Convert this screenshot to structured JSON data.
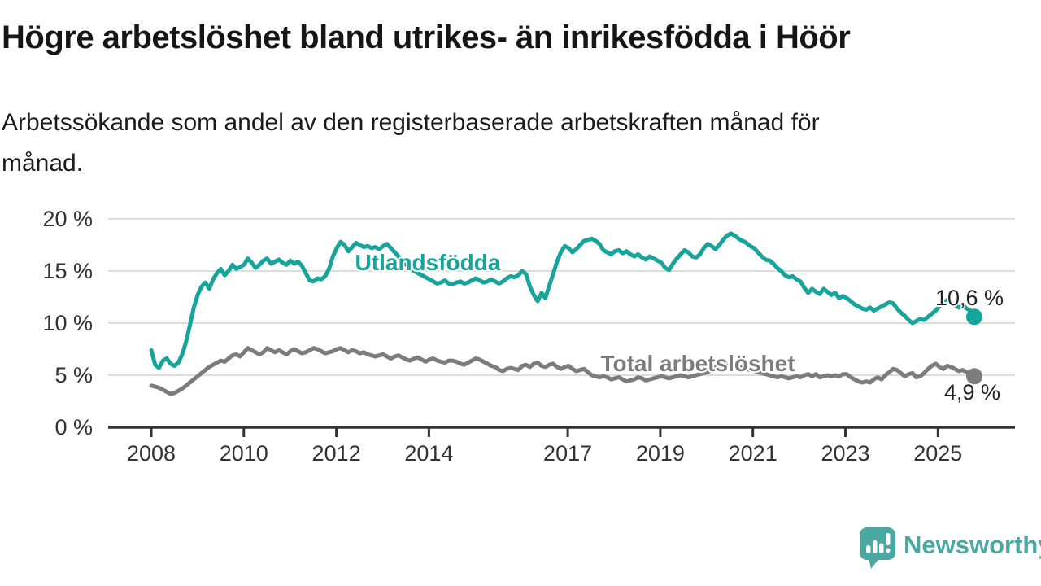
{
  "chart_data": {
    "type": "line",
    "title": "Högre arbetslöshet bland utrikes- än inrikesfödda i Höör",
    "subtitle": "Arbetssökande som andel av den registerbaserade arbetskraften månad för\nmånad.",
    "x_unit": "month",
    "x_start": "2008-01",
    "x_end": "2025-10",
    "x_tick_years": [
      2008,
      2010,
      2012,
      2014,
      2017,
      2019,
      2021,
      2023,
      2025
    ],
    "y_ticks": [
      {
        "value": 20,
        "label": "20 %"
      },
      {
        "value": 15,
        "label": "15 %"
      },
      {
        "value": 10,
        "label": "10 %"
      },
      {
        "value": 5,
        "label": "5 %"
      },
      {
        "value": 0,
        "label": "0 %"
      }
    ],
    "ylim": [
      0,
      20
    ],
    "unit": "%",
    "grid": "horizontal-only",
    "legend": "inline-labels-on-lines",
    "series": [
      {
        "name": "Utlandsfödda",
        "color": "#17A49A",
        "end_label": "10,6 %",
        "end_value": 10.6,
        "values": [
          7.4,
          6.0,
          5.7,
          6.4,
          6.6,
          6.1,
          5.9,
          6.2,
          7.0,
          8.2,
          9.8,
          11.5,
          12.7,
          13.5,
          13.9,
          13.3,
          14.2,
          14.8,
          15.2,
          14.6,
          15.0,
          15.6,
          15.2,
          15.4,
          15.6,
          16.2,
          15.8,
          15.3,
          15.6,
          16.0,
          16.2,
          15.7,
          15.9,
          16.1,
          15.8,
          15.6,
          16.0,
          15.7,
          15.9,
          15.5,
          14.8,
          14.1,
          14.0,
          14.3,
          14.2,
          14.5,
          15.2,
          16.4,
          17.2,
          17.8,
          17.5,
          16.9,
          17.3,
          17.7,
          17.5,
          17.3,
          17.4,
          17.2,
          17.3,
          17.1,
          17.4,
          17.6,
          17.2,
          16.8,
          16.4,
          16.0,
          15.6,
          15.2,
          15.0,
          14.8,
          14.6,
          14.4,
          14.2,
          14.0,
          13.8,
          13.9,
          14.1,
          13.8,
          13.7,
          13.9,
          14.0,
          13.8,
          13.9,
          14.1,
          14.3,
          14.1,
          13.9,
          14.0,
          14.2,
          14.0,
          13.8,
          14.0,
          14.3,
          14.5,
          14.4,
          14.6,
          15.0,
          14.7,
          13.5,
          12.7,
          12.1,
          12.9,
          12.4,
          13.6,
          14.7,
          15.9,
          16.8,
          17.4,
          17.2,
          16.8,
          17.1,
          17.5,
          17.9,
          18.0,
          18.1,
          17.9,
          17.6,
          17.0,
          16.8,
          16.6,
          16.9,
          17.0,
          16.7,
          16.9,
          16.6,
          16.4,
          16.6,
          16.3,
          16.1,
          16.4,
          16.2,
          16.0,
          15.8,
          15.3,
          15.1,
          15.7,
          16.2,
          16.6,
          17.0,
          16.8,
          16.4,
          16.3,
          16.6,
          17.2,
          17.6,
          17.4,
          17.1,
          17.5,
          18.0,
          18.4,
          18.6,
          18.4,
          18.1,
          17.9,
          17.7,
          17.4,
          17.2,
          16.8,
          16.4,
          16.1,
          16.0,
          15.7,
          15.3,
          15.0,
          14.6,
          14.4,
          14.5,
          14.2,
          14.0,
          13.4,
          12.9,
          13.3,
          13.0,
          12.8,
          13.3,
          13.0,
          12.7,
          12.9,
          12.4,
          12.6,
          12.4,
          12.1,
          11.8,
          11.6,
          11.4,
          11.3,
          11.5,
          11.2,
          11.4,
          11.6,
          11.8,
          12.0,
          11.9,
          11.4,
          11.0,
          10.7,
          10.3,
          10.0,
          10.2,
          10.4,
          10.3,
          10.6,
          10.9,
          11.2,
          11.6,
          12.0,
          12.2,
          11.9,
          11.7,
          11.5,
          11.7,
          11.4,
          11.2,
          10.6
        ]
      },
      {
        "name": "Total arbetslöshet",
        "color": "#7C7C7C",
        "end_label": "4,9 %",
        "end_value": 4.9,
        "values": [
          4.0,
          3.9,
          3.8,
          3.6,
          3.4,
          3.2,
          3.3,
          3.5,
          3.7,
          4.0,
          4.3,
          4.6,
          4.9,
          5.2,
          5.5,
          5.8,
          6.0,
          6.2,
          6.4,
          6.3,
          6.6,
          6.9,
          7.0,
          6.8,
          7.2,
          7.6,
          7.4,
          7.2,
          7.0,
          7.2,
          7.6,
          7.4,
          7.2,
          7.4,
          7.2,
          7.0,
          7.3,
          7.5,
          7.3,
          7.1,
          7.2,
          7.4,
          7.6,
          7.5,
          7.3,
          7.1,
          7.2,
          7.3,
          7.5,
          7.6,
          7.4,
          7.2,
          7.4,
          7.3,
          7.1,
          7.2,
          7.0,
          6.9,
          6.8,
          6.9,
          7.0,
          6.8,
          6.6,
          6.8,
          6.9,
          6.7,
          6.5,
          6.4,
          6.6,
          6.7,
          6.5,
          6.3,
          6.5,
          6.6,
          6.4,
          6.3,
          6.2,
          6.4,
          6.4,
          6.3,
          6.1,
          6.0,
          6.2,
          6.4,
          6.6,
          6.5,
          6.3,
          6.1,
          5.9,
          5.8,
          5.5,
          5.4,
          5.6,
          5.7,
          5.6,
          5.5,
          5.9,
          6.0,
          5.8,
          6.1,
          6.2,
          5.9,
          5.8,
          6.0,
          6.1,
          5.8,
          5.6,
          5.8,
          5.9,
          5.6,
          5.4,
          5.5,
          5.6,
          5.3,
          5.0,
          4.9,
          4.8,
          4.9,
          4.8,
          4.6,
          4.7,
          4.8,
          4.6,
          4.4,
          4.5,
          4.6,
          4.8,
          4.7,
          4.5,
          4.6,
          4.7,
          4.8,
          4.9,
          4.8,
          4.7,
          4.8,
          4.9,
          5.0,
          4.9,
          4.8,
          4.9,
          5.0,
          5.1,
          5.2,
          5.3,
          5.5,
          5.8,
          6.1,
          6.2,
          6.1,
          6.0,
          5.9,
          5.8,
          5.7,
          5.6,
          5.5,
          5.4,
          5.3,
          5.2,
          5.1,
          5.0,
          4.9,
          4.8,
          4.9,
          4.8,
          4.7,
          4.8,
          4.9,
          4.8,
          5.0,
          5.1,
          4.9,
          5.1,
          4.8,
          4.9,
          5.0,
          4.9,
          5.0,
          4.9,
          5.1,
          5.1,
          4.8,
          4.6,
          4.4,
          4.3,
          4.4,
          4.3,
          4.6,
          4.8,
          4.6,
          5.0,
          5.3,
          5.6,
          5.5,
          5.2,
          4.9,
          5.1,
          5.2,
          4.8,
          4.9,
          5.2,
          5.6,
          5.9,
          6.1,
          5.8,
          5.6,
          5.9,
          5.8,
          5.6,
          5.4,
          5.5,
          5.3,
          5.1,
          4.9
        ]
      }
    ]
  },
  "axis_colors": {
    "grid": "#DDDDDD",
    "baseline": "#333333",
    "tick_text": "#333333"
  },
  "branding": {
    "logo_text": "Newsworthy",
    "logo_color": "#4BA7A1"
  }
}
